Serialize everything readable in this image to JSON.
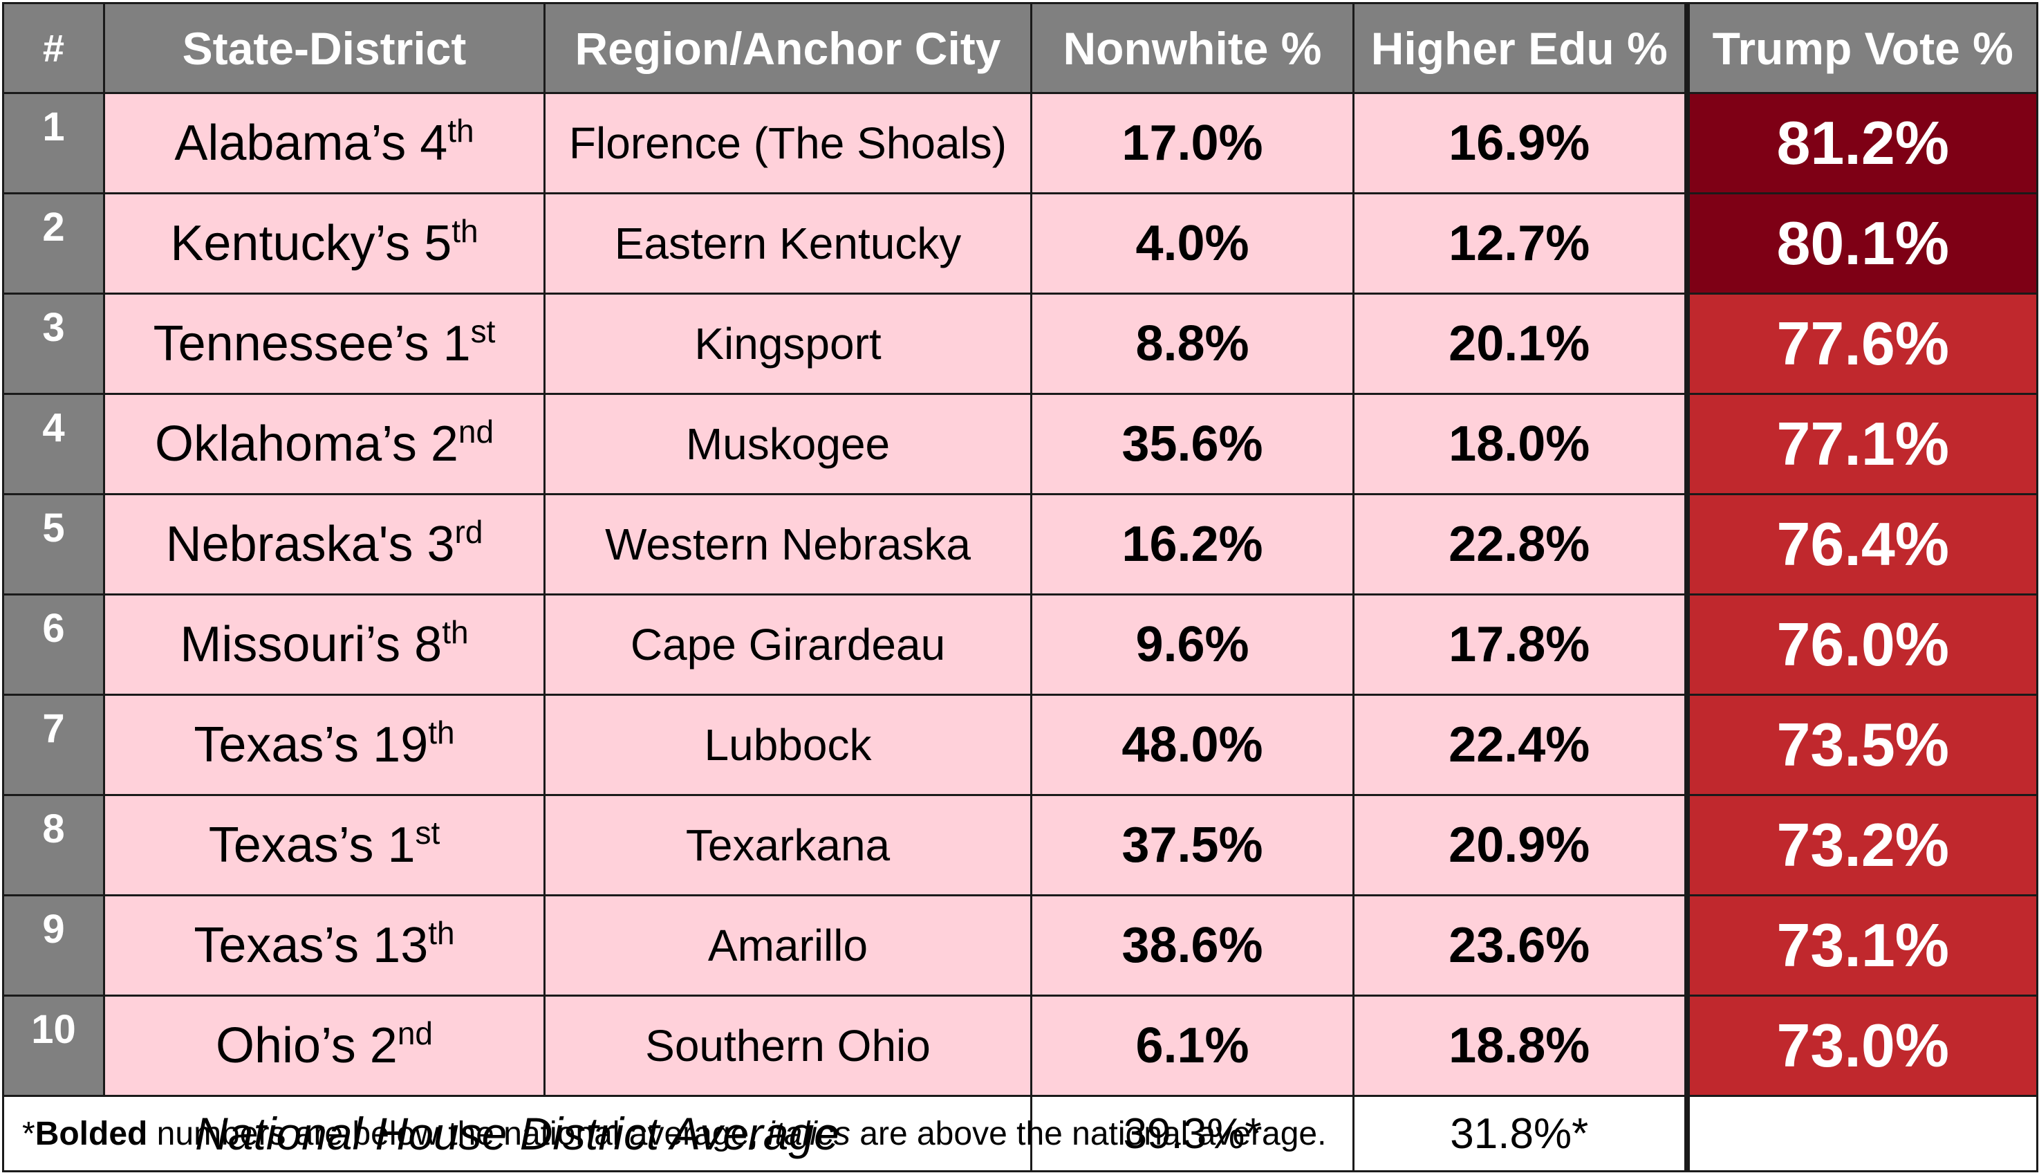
{
  "chart_data": {
    "type": "table",
    "columns": [
      "#",
      "State-District",
      "Region/Anchor City",
      "Nonwhite %",
      "Higher Edu %",
      "Trump Vote %"
    ],
    "rows": [
      {
        "num": "1",
        "state": "Alabama’s 4",
        "ord": "th",
        "region": "Florence (The Shoals)",
        "nonwhite": "17.0%",
        "edu": "16.9%",
        "trump": "81.2%",
        "trump_value": 81.2
      },
      {
        "num": "2",
        "state": "Kentucky’s 5",
        "ord": "th",
        "region": "Eastern Kentucky",
        "nonwhite": "4.0%",
        "edu": "12.7%",
        "trump": "80.1%",
        "trump_value": 80.1
      },
      {
        "num": "3",
        "state": "Tennessee’s 1",
        "ord": "st",
        "region": "Kingsport",
        "nonwhite": "8.8%",
        "edu": "20.1%",
        "trump": "77.6%",
        "trump_value": 77.6
      },
      {
        "num": "4",
        "state": "Oklahoma’s 2",
        "ord": "nd",
        "region": "Muskogee",
        "nonwhite": "35.6%",
        "edu": "18.0%",
        "trump": "77.1%",
        "trump_value": 77.1
      },
      {
        "num": "5",
        "state": "Nebraska's 3",
        "ord": "rd",
        "region": "Western Nebraska",
        "nonwhite": "16.2%",
        "edu": "22.8%",
        "trump": "76.4%",
        "trump_value": 76.4
      },
      {
        "num": "6",
        "state": "Missouri’s 8",
        "ord": "th",
        "region": "Cape Girardeau",
        "nonwhite": "9.6%",
        "edu": "17.8%",
        "trump": "76.0%",
        "trump_value": 76.0
      },
      {
        "num": "7",
        "state": "Texas’s 19",
        "ord": "th",
        "region": "Lubbock",
        "nonwhite": "48.0%",
        "edu": "22.4%",
        "trump": "73.5%",
        "trump_value": 73.5
      },
      {
        "num": "8",
        "state": "Texas’s 1",
        "ord": "st",
        "region": "Texarkana",
        "nonwhite": "37.5%",
        "edu": "20.9%",
        "trump": "73.2%",
        "trump_value": 73.2
      },
      {
        "num": "9",
        "state": "Texas’s 13",
        "ord": "th",
        "region": "Amarillo",
        "nonwhite": "38.6%",
        "edu": "23.6%",
        "trump": "73.1%",
        "trump_value": 73.1
      },
      {
        "num": "10",
        "state": "Ohio’s 2",
        "ord": "nd",
        "region": "Southern Ohio",
        "nonwhite": "6.1%",
        "edu": "18.8%",
        "trump": "73.0%",
        "trump_value": 73.0
      }
    ],
    "average": {
      "label": "National House District Average",
      "nonwhite": "39.3%*",
      "edu": "31.8%*"
    },
    "colors": {
      "header_bg": "#808080",
      "row_bg": "#ffd1da",
      "trump_high": "#7e0015",
      "trump_mid": "#c0282d"
    }
  },
  "footnote": {
    "star": "*",
    "bold": "Bolded",
    "part1": " numbers are below the national average, ",
    "italic": "italics",
    "part2": " are above the national average."
  }
}
